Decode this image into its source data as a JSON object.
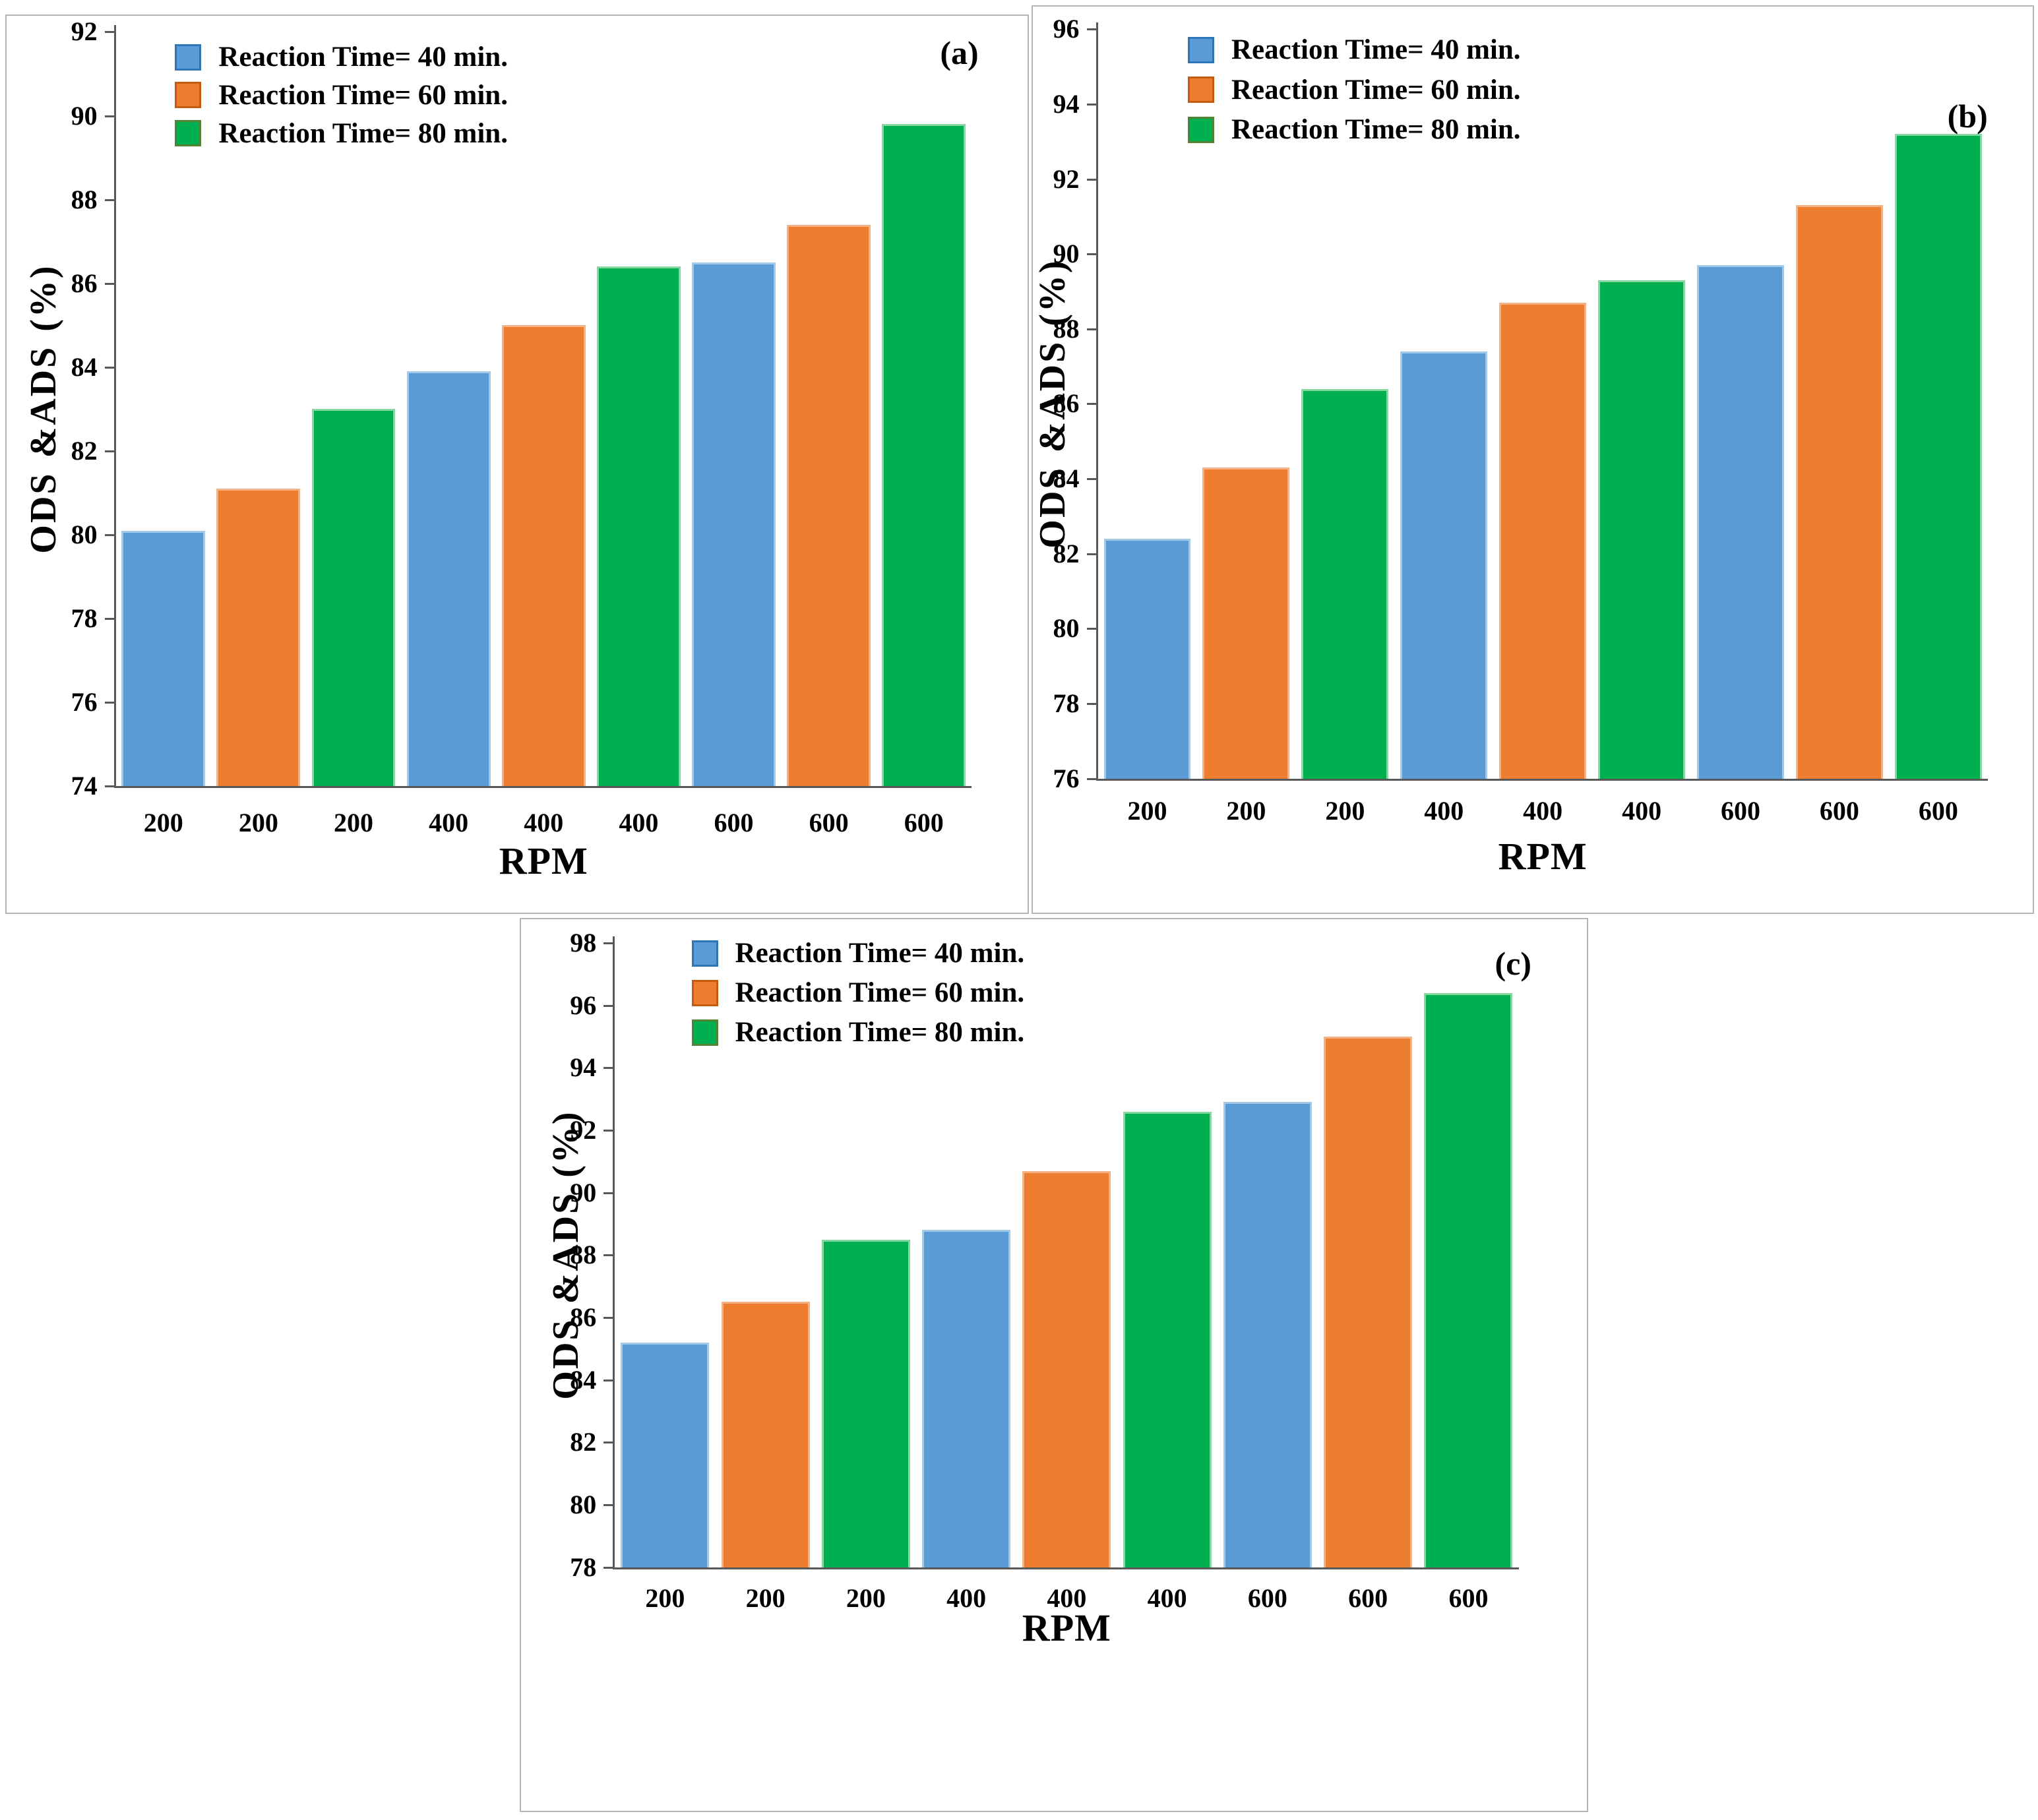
{
  "colors": {
    "series_fill": [
      "#5B9BD5",
      "#ED7D31",
      "#00B050"
    ],
    "series_edge": [
      "#A3C9E8",
      "#F4B183",
      "#86D7A2"
    ],
    "legend_swatch_border": [
      "#2E75B6",
      "#C55A11",
      "#548235"
    ],
    "axis": "#595959",
    "panel_border": "#B3B3B3",
    "text": "#000000"
  },
  "chart_data": [
    {
      "type": "bar",
      "panel_label": "(a)",
      "xlabel": "RPM",
      "ylabel": "ODS &ADS (%)",
      "ylim": [
        74,
        92
      ],
      "yticks": [
        74,
        76,
        78,
        80,
        82,
        84,
        86,
        88,
        90,
        92
      ],
      "grid": false,
      "legend_position": "top-left",
      "legend": [
        "Reaction Time= 40 min.",
        "Reaction Time= 60 min.",
        "Reaction Time= 80 min."
      ],
      "groups": [
        "200",
        "400",
        "600"
      ],
      "bar_categories": [
        "200",
        "200",
        "200",
        "400",
        "400",
        "400",
        "600",
        "600",
        "600"
      ],
      "series": [
        {
          "name": "Reaction Time= 40 min.",
          "values": [
            80.1,
            83.9,
            86.5
          ]
        },
        {
          "name": "Reaction Time= 60 min.",
          "values": [
            81.1,
            85.0,
            87.4
          ]
        },
        {
          "name": "Reaction Time= 80 min.",
          "values": [
            83.0,
            86.4,
            89.8
          ]
        }
      ]
    },
    {
      "type": "bar",
      "panel_label": "(b)",
      "xlabel": "RPM",
      "ylabel": "ODS &ADS (%)",
      "ylim": [
        76,
        96
      ],
      "yticks": [
        76,
        78,
        80,
        82,
        84,
        86,
        88,
        90,
        92,
        94,
        96
      ],
      "grid": false,
      "legend_position": "top-left",
      "legend": [
        "Reaction Time= 40 min.",
        "Reaction Time= 60 min.",
        "Reaction Time= 80 min."
      ],
      "groups": [
        "200",
        "400",
        "600"
      ],
      "bar_categories": [
        "200",
        "200",
        "200",
        "400",
        "400",
        "400",
        "600",
        "600",
        "600"
      ],
      "series": [
        {
          "name": "Reaction Time= 40 min.",
          "values": [
            82.4,
            87.4,
            89.7
          ]
        },
        {
          "name": "Reaction Time= 60 min.",
          "values": [
            84.3,
            88.7,
            91.3
          ]
        },
        {
          "name": "Reaction Time= 80 min.",
          "values": [
            86.4,
            89.3,
            93.2
          ]
        }
      ]
    },
    {
      "type": "bar",
      "panel_label": "(c)",
      "xlabel": "RPM",
      "ylabel": "ODS &ADS (%)",
      "ylim": [
        78,
        98
      ],
      "yticks": [
        78,
        80,
        82,
        84,
        86,
        88,
        90,
        92,
        94,
        96,
        98
      ],
      "grid": false,
      "legend_position": "top-left",
      "legend": [
        "Reaction Time= 40 min.",
        "Reaction Time= 60 min.",
        "Reaction Time= 80 min."
      ],
      "groups": [
        "200",
        "400",
        "600"
      ],
      "bar_categories": [
        "200",
        "200",
        "200",
        "400",
        "400",
        "400",
        "600",
        "600",
        "600"
      ],
      "series": [
        {
          "name": "Reaction Time= 40 min.",
          "values": [
            85.2,
            88.8,
            92.9
          ]
        },
        {
          "name": "Reaction Time= 60 min.",
          "values": [
            86.5,
            90.7,
            95.0
          ]
        },
        {
          "name": "Reaction Time= 80 min.",
          "values": [
            88.5,
            92.6,
            96.4
          ]
        }
      ]
    }
  ]
}
